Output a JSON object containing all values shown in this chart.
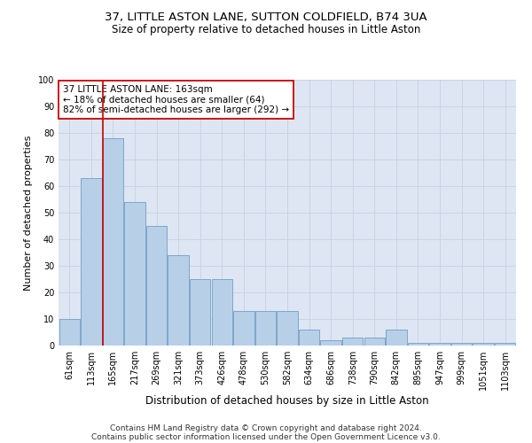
{
  "title1": "37, LITTLE ASTON LANE, SUTTON COLDFIELD, B74 3UA",
  "title2": "Size of property relative to detached houses in Little Aston",
  "xlabel": "Distribution of detached houses by size in Little Aston",
  "ylabel": "Number of detached properties",
  "bar_labels": [
    "61sqm",
    "113sqm",
    "165sqm",
    "217sqm",
    "269sqm",
    "321sqm",
    "373sqm",
    "426sqm",
    "478sqm",
    "530sqm",
    "582sqm",
    "634sqm",
    "686sqm",
    "738sqm",
    "790sqm",
    "842sqm",
    "895sqm",
    "947sqm",
    "999sqm",
    "1051sqm",
    "1103sqm"
  ],
  "bar_heights": [
    10,
    63,
    78,
    54,
    45,
    34,
    25,
    25,
    13,
    13,
    13,
    6,
    2,
    3,
    3,
    6,
    1,
    1,
    1,
    1,
    1
  ],
  "bar_color": "#b8cfe8",
  "bar_edgecolor": "#7aa8cc",
  "vline_index": 2,
  "vline_color": "#cc0000",
  "annotation_line1": "37 LITTLE ASTON LANE: 163sqm",
  "annotation_line2": "← 18% of detached houses are smaller (64)",
  "annotation_line3": "82% of semi-detached houses are larger (292) →",
  "annotation_box_edgecolor": "#cc0000",
  "ylim": [
    0,
    100
  ],
  "yticks": [
    0,
    10,
    20,
    30,
    40,
    50,
    60,
    70,
    80,
    90,
    100
  ],
  "grid_color": "#c8d4e8",
  "bg_color": "#dde6f2",
  "footnote1": "Contains HM Land Registry data © Crown copyright and database right 2024.",
  "footnote2": "Contains public sector information licensed under the Open Government Licence v3.0.",
  "title1_fontsize": 9.5,
  "title2_fontsize": 8.5,
  "xlabel_fontsize": 8.5,
  "ylabel_fontsize": 8,
  "tick_fontsize": 7,
  "annotation_fontsize": 7.5,
  "footnote_fontsize": 6.5
}
